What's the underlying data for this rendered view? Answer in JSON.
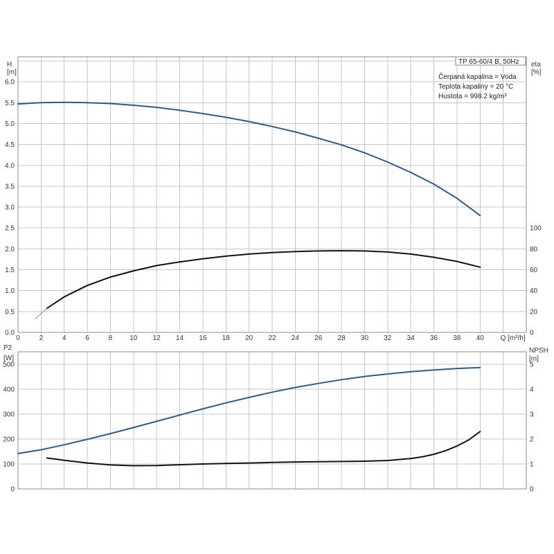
{
  "info_box": {
    "model": "TP 65-60/4 B, 50Hz",
    "lines": [
      "Čerpaná kapalina = Voda",
      "Teplota kapaliny = 20 °C",
      "Hustota = 998.2 kg/m³"
    ]
  },
  "colors": {
    "blue_curve": "#2a5b8c",
    "black_curve": "#111111",
    "grid": "#c4c4c4",
    "frame": "#8a8a8a"
  },
  "chart_data": [
    {
      "type": "line",
      "x_axis": {
        "label": "Q [m³/h]",
        "range": [
          0,
          44
        ],
        "ticks": [
          0,
          2,
          4,
          6,
          8,
          10,
          12,
          14,
          16,
          18,
          20,
          22,
          24,
          26,
          28,
          30,
          32,
          34,
          36,
          38,
          40
        ]
      },
      "y_left": {
        "label_lines": [
          "H",
          "[m]"
        ],
        "range": [
          0,
          6.6
        ],
        "ticks": [
          "0.0",
          "0.5",
          "1.0",
          "1.5",
          "2.0",
          "2.5",
          "3.0",
          "3.5",
          "4.0",
          "4.5",
          "5.0",
          "5.5",
          "6.0"
        ]
      },
      "y_right": {
        "label_lines": [
          "eta",
          "[%]"
        ],
        "range": [
          0,
          264
        ],
        "ticks": [
          0,
          20,
          40,
          60,
          80,
          100
        ]
      },
      "grid": true,
      "series": [
        {
          "axis": "left",
          "color": "blue",
          "x": [
            0,
            2,
            4,
            6,
            8,
            10,
            12,
            14,
            16,
            18,
            20,
            22,
            24,
            26,
            28,
            30,
            32,
            34,
            36,
            38,
            40
          ],
          "y": [
            5.47,
            5.5,
            5.51,
            5.5,
            5.48,
            5.44,
            5.39,
            5.32,
            5.24,
            5.15,
            5.05,
            4.93,
            4.8,
            4.65,
            4.49,
            4.3,
            4.08,
            3.83,
            3.55,
            3.21,
            2.8
          ]
        },
        {
          "axis": "right",
          "color": "black",
          "x": [
            2.5,
            4,
            6,
            8,
            10,
            12,
            14,
            16,
            18,
            20,
            22,
            24,
            26,
            28,
            30,
            32,
            34,
            36,
            38,
            40
          ],
          "y": [
            23,
            34,
            45,
            53,
            59,
            64,
            67.5,
            70.5,
            73,
            75,
            76.5,
            77.5,
            78,
            78.3,
            78,
            77,
            75,
            72,
            68,
            62.5
          ]
        },
        {
          "axis": "right",
          "color": "gray",
          "x": [
            1.5,
            2.5
          ],
          "y": [
            13,
            23
          ]
        }
      ]
    },
    {
      "type": "line",
      "x_axis": {
        "range": [
          0,
          44
        ],
        "ticks": [
          0,
          2,
          4,
          6,
          8,
          10,
          12,
          14,
          16,
          18,
          20,
          22,
          24,
          26,
          28,
          30,
          32,
          34,
          36,
          38,
          40
        ]
      },
      "y_left": {
        "label_lines": [
          "P2",
          "[W]"
        ],
        "range": [
          0,
          550
        ],
        "ticks": [
          0,
          100,
          200,
          300,
          400,
          500
        ]
      },
      "y_right": {
        "label_lines": [
          "NPSH",
          "[m]"
        ],
        "range": [
          0,
          5.5
        ],
        "ticks": [
          0,
          1,
          2,
          3,
          4,
          5
        ]
      },
      "grid": true,
      "series": [
        {
          "axis": "left",
          "color": "blue",
          "x": [
            0,
            2,
            4,
            6,
            8,
            10,
            12,
            14,
            16,
            18,
            20,
            22,
            24,
            26,
            28,
            30,
            32,
            34,
            36,
            38,
            40
          ],
          "y": [
            142,
            157,
            177,
            199,
            222,
            246,
            271,
            296,
            321,
            345,
            367,
            388,
            407,
            423,
            438,
            451,
            461,
            470,
            477,
            483,
            487
          ]
        },
        {
          "axis": "right",
          "color": "black",
          "x": [
            2.5,
            4,
            6,
            8,
            10,
            12,
            14,
            16,
            18,
            20,
            22,
            24,
            26,
            28,
            30,
            32,
            34,
            35,
            36,
            37,
            38,
            39,
            40
          ],
          "y": [
            1.24,
            1.15,
            1.04,
            0.96,
            0.93,
            0.94,
            0.97,
            1.0,
            1.02,
            1.04,
            1.06,
            1.08,
            1.09,
            1.1,
            1.11,
            1.14,
            1.22,
            1.29,
            1.39,
            1.53,
            1.72,
            1.96,
            2.3
          ]
        }
      ]
    }
  ]
}
